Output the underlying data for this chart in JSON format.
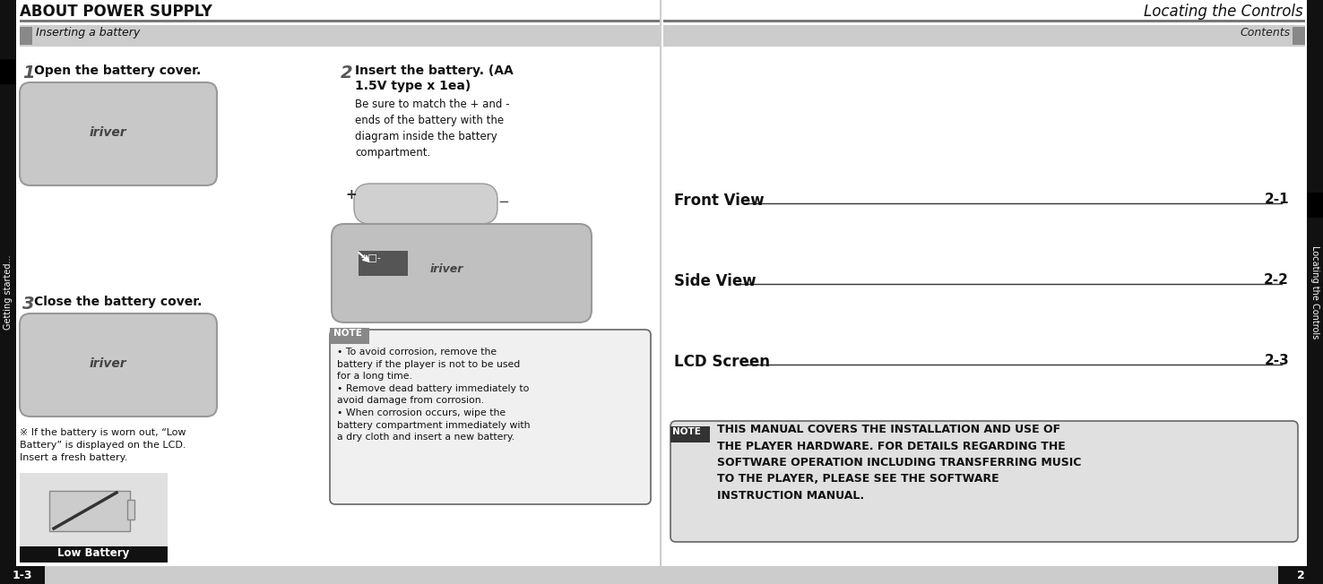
{
  "bg_color": "#ffffff",
  "left_title": "ABOUT POWER SUPPLY",
  "right_title": "Locating the Controls",
  "left_section_label": "Inserting a battery",
  "right_section_label": "Contents",
  "sidebar_left_text": "Getting started...",
  "sidebar_right_text": "Locating the Controls",
  "step1_num": "1",
  "step1_text": "Open the battery cover.",
  "step2_num": "2",
  "step2_title": "Insert the battery. (AA\n1.5V type x 1ea)",
  "step2_body": "Be sure to match the + and -\nends of the battery with the\ndiagram inside the battery\ncompartment.",
  "step3_num": "3",
  "step3_text": "Close the battery cover.",
  "low_batt_note": "※ If the battery is worn out, “Low\nBattery” is displayed on the LCD.\nInsert a fresh battery.",
  "low_batt_label": "Low Battery",
  "note_label": "NOTE",
  "note_items": [
    "To avoid corrosion, remove the\nbattery if the player is not to be used\nfor a long time.",
    "Remove dead battery immediately to\navoid damage from corrosion.",
    "When corrosion occurs, wipe the\nbattery compartment immediately with\na dry cloth and insert a new battery."
  ],
  "toc_entries": [
    {
      "label": "Front View",
      "page": "2-1"
    },
    {
      "label": "Side View",
      "page": "2-2"
    },
    {
      "label": "LCD Screen",
      "page": "2-3"
    }
  ],
  "right_note_label": "NOTE",
  "right_note_text": "THIS MANUAL COVERS THE INSTALLATION AND USE OF\nTHE PLAYER HARDWARE. FOR DETAILS REGARDING THE\nSOFTWARE OPERATION INCLUDING TRANSFERRING MUSIC\nTO THE PLAYER, PLEASE SEE THE SOFTWARE\nINSTRUCTION MANUAL.",
  "page_left": "1-3",
  "page_right": "2",
  "divider_color": "#777777",
  "section_bar_color": "#cccccc",
  "sidebar_bg": "#111111",
  "note_bg": "#f0f0f0",
  "note_border": "#666666",
  "right_note_bg": "#e0e0e0",
  "low_batt_bg": "#e0e0e0"
}
